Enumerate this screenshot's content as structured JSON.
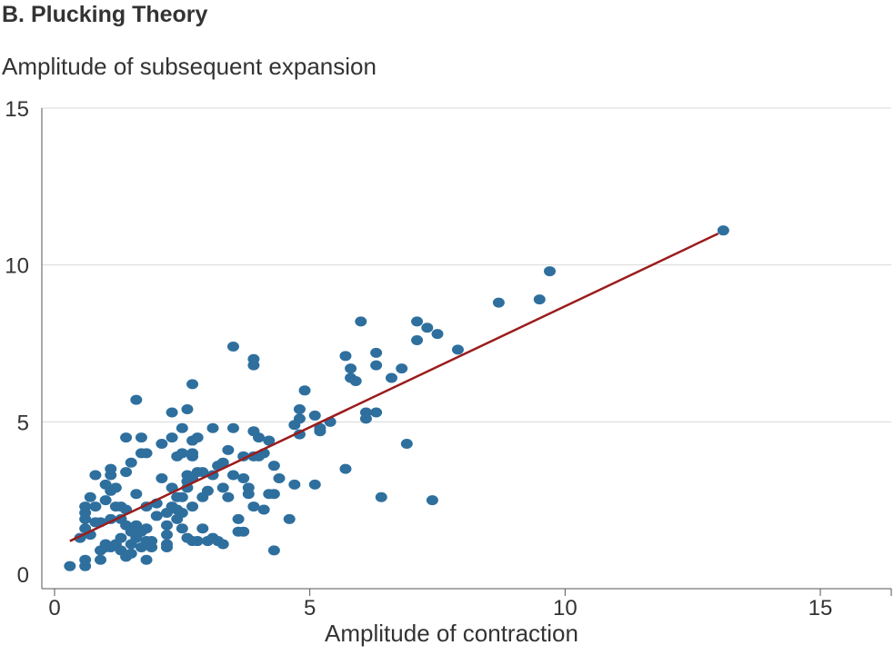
{
  "chart_data": {
    "type": "scatter",
    "title": "B. Plucking Theory",
    "ylabel": "Amplitude of subsequent expansion",
    "xlabel": "Amplitude of contraction",
    "xlim": [
      -0.3,
      16.5
    ],
    "ylim": [
      -0.4,
      15
    ],
    "x_ticks": [
      0,
      5,
      10,
      15
    ],
    "y_ticks": [
      0,
      5,
      10,
      15
    ],
    "grid": "horizontal",
    "point_color": "#2e6f9e",
    "line_color": "#9b1c1c",
    "trend_line": {
      "x": [
        0.3,
        13.0
      ],
      "y": [
        1.2,
        11.0
      ]
    },
    "points": [
      [
        0.3,
        0.4
      ],
      [
        0.6,
        0.4
      ],
      [
        0.6,
        0.6
      ],
      [
        0.5,
        1.3
      ],
      [
        0.6,
        1.6
      ],
      [
        0.6,
        1.9
      ],
      [
        0.6,
        2.1
      ],
      [
        0.6,
        2.3
      ],
      [
        0.7,
        1.4
      ],
      [
        0.7,
        2.6
      ],
      [
        0.8,
        1.8
      ],
      [
        0.8,
        2.3
      ],
      [
        0.8,
        3.3
      ],
      [
        0.9,
        0.6
      ],
      [
        0.9,
        0.9
      ],
      [
        0.9,
        1.8
      ],
      [
        1.0,
        1.0
      ],
      [
        1.0,
        1.1
      ],
      [
        1.0,
        2.5
      ],
      [
        1.0,
        3.0
      ],
      [
        1.1,
        1.0
      ],
      [
        1.1,
        1.9
      ],
      [
        1.1,
        2.8
      ],
      [
        1.1,
        3.3
      ],
      [
        1.1,
        3.5
      ],
      [
        1.2,
        1.1
      ],
      [
        1.2,
        2.3
      ],
      [
        1.2,
        2.9
      ],
      [
        1.3,
        0.9
      ],
      [
        1.3,
        1.3
      ],
      [
        1.3,
        1.9
      ],
      [
        1.3,
        2.3
      ],
      [
        1.4,
        0.7
      ],
      [
        1.4,
        1.7
      ],
      [
        1.4,
        2.2
      ],
      [
        1.4,
        3.4
      ],
      [
        1.4,
        4.5
      ],
      [
        1.5,
        0.8
      ],
      [
        1.5,
        1.1
      ],
      [
        1.5,
        1.5
      ],
      [
        1.5,
        3.7
      ],
      [
        1.6,
        1.3
      ],
      [
        1.6,
        1.7
      ],
      [
        1.6,
        2.7
      ],
      [
        1.6,
        5.7
      ],
      [
        1.7,
        1.0
      ],
      [
        1.7,
        1.5
      ],
      [
        1.7,
        4.0
      ],
      [
        1.7,
        4.5
      ],
      [
        1.8,
        0.6
      ],
      [
        1.8,
        1.2
      ],
      [
        1.8,
        1.6
      ],
      [
        1.8,
        2.3
      ],
      [
        1.8,
        4.0
      ],
      [
        1.9,
        1.0
      ],
      [
        1.9,
        1.2
      ],
      [
        2.0,
        2.0
      ],
      [
        2.0,
        2.4
      ],
      [
        2.1,
        3.2
      ],
      [
        2.1,
        4.3
      ],
      [
        2.2,
        1.0
      ],
      [
        2.2,
        1.1
      ],
      [
        2.2,
        1.4
      ],
      [
        2.2,
        1.7
      ],
      [
        2.2,
        2.1
      ],
      [
        2.3,
        2.3
      ],
      [
        2.3,
        2.9
      ],
      [
        2.3,
        4.5
      ],
      [
        2.3,
        5.3
      ],
      [
        2.4,
        1.9
      ],
      [
        2.4,
        2.2
      ],
      [
        2.4,
        2.6
      ],
      [
        2.4,
        3.9
      ],
      [
        2.5,
        1.6
      ],
      [
        2.5,
        2.1
      ],
      [
        2.5,
        2.6
      ],
      [
        2.5,
        4.0
      ],
      [
        2.5,
        4.8
      ],
      [
        2.6,
        1.3
      ],
      [
        2.6,
        2.9
      ],
      [
        2.6,
        3.1
      ],
      [
        2.6,
        3.3
      ],
      [
        2.6,
        5.4
      ],
      [
        2.7,
        1.2
      ],
      [
        2.7,
        2.3
      ],
      [
        2.7,
        3.2
      ],
      [
        2.7,
        3.9
      ],
      [
        2.7,
        4.0
      ],
      [
        2.7,
        4.4
      ],
      [
        2.7,
        6.2
      ],
      [
        2.8,
        1.2
      ],
      [
        2.8,
        3.4
      ],
      [
        2.8,
        4.5
      ],
      [
        2.9,
        1.6
      ],
      [
        2.9,
        2.6
      ],
      [
        2.9,
        3.4
      ],
      [
        3.0,
        1.2
      ],
      [
        3.0,
        2.8
      ],
      [
        3.1,
        1.3
      ],
      [
        3.1,
        3.3
      ],
      [
        3.1,
        4.8
      ],
      [
        3.2,
        1.2
      ],
      [
        3.2,
        3.6
      ],
      [
        3.3,
        1.1
      ],
      [
        3.3,
        2.9
      ],
      [
        3.3,
        3.7
      ],
      [
        3.4,
        2.6
      ],
      [
        3.4,
        4.1
      ],
      [
        3.5,
        3.3
      ],
      [
        3.5,
        4.8
      ],
      [
        3.5,
        7.4
      ],
      [
        3.6,
        1.5
      ],
      [
        3.6,
        1.9
      ],
      [
        3.7,
        1.5
      ],
      [
        3.7,
        3.2
      ],
      [
        3.7,
        3.9
      ],
      [
        3.8,
        2.7
      ],
      [
        3.8,
        2.9
      ],
      [
        3.9,
        2.3
      ],
      [
        3.9,
        3.9
      ],
      [
        3.9,
        4.7
      ],
      [
        3.9,
        6.8
      ],
      [
        3.9,
        7.0
      ],
      [
        4.0,
        3.9
      ],
      [
        4.0,
        4.5
      ],
      [
        4.1,
        2.2
      ],
      [
        4.1,
        4.0
      ],
      [
        4.2,
        2.7
      ],
      [
        4.2,
        4.4
      ],
      [
        4.3,
        0.9
      ],
      [
        4.3,
        2.7
      ],
      [
        4.3,
        3.6
      ],
      [
        4.4,
        3.2
      ],
      [
        4.6,
        1.9
      ],
      [
        4.7,
        3.0
      ],
      [
        4.7,
        4.9
      ],
      [
        4.8,
        4.6
      ],
      [
        4.8,
        5.1
      ],
      [
        4.8,
        5.4
      ],
      [
        4.9,
        6.0
      ],
      [
        5.1,
        3.0
      ],
      [
        5.1,
        5.2
      ],
      [
        5.2,
        4.7
      ],
      [
        5.2,
        4.8
      ],
      [
        5.4,
        5.0
      ],
      [
        5.7,
        3.5
      ],
      [
        5.7,
        7.1
      ],
      [
        5.8,
        6.4
      ],
      [
        5.8,
        6.7
      ],
      [
        5.9,
        6.3
      ],
      [
        6.0,
        8.2
      ],
      [
        6.1,
        5.1
      ],
      [
        6.1,
        5.3
      ],
      [
        6.3,
        5.3
      ],
      [
        6.3,
        6.8
      ],
      [
        6.3,
        7.2
      ],
      [
        6.4,
        2.6
      ],
      [
        6.6,
        6.4
      ],
      [
        6.8,
        6.7
      ],
      [
        6.9,
        4.3
      ],
      [
        7.1,
        7.6
      ],
      [
        7.1,
        8.2
      ],
      [
        7.3,
        8.0
      ],
      [
        7.4,
        2.5
      ],
      [
        7.5,
        7.8
      ],
      [
        7.9,
        7.3
      ],
      [
        8.7,
        8.8
      ],
      [
        9.5,
        8.9
      ],
      [
        9.7,
        9.8
      ],
      [
        13.1,
        11.1
      ]
    ]
  }
}
